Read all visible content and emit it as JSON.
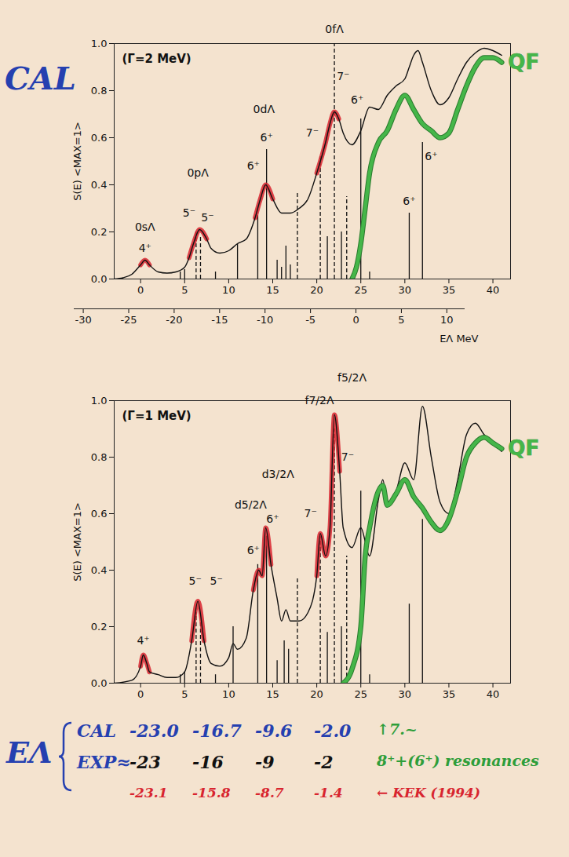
{
  "side_label": {
    "text": "CAL",
    "color": "#2540b0"
  },
  "chart_data": [
    {
      "type": "line",
      "title": "(Γ=2 MeV)",
      "y_label": "S(E) <MAX=1>",
      "xlim": [
        -3,
        42
      ],
      "xticks": [
        0,
        5,
        10,
        15,
        20,
        25,
        30,
        35,
        40
      ],
      "ylim": [
        0,
        1
      ],
      "yticks": [
        {
          "value": 0,
          "label": "0.0"
        },
        0.2,
        0.4,
        0.6,
        0.8,
        {
          "value": 1,
          "label": "1.0"
        }
      ],
      "secondary_x": {
        "label": "EΛ MeV",
        "xlim": [
          -31,
          12
        ],
        "xticks": [
          -30,
          -25,
          -20,
          -15,
          -10,
          -5,
          0,
          5,
          10
        ]
      },
      "series": [
        {
          "color": "#111111",
          "x": [
            -3,
            -2,
            -1,
            0,
            0.5,
            1,
            2,
            3,
            4,
            5,
            5.5,
            6,
            6.7,
            7.5,
            8,
            9,
            10,
            11,
            12,
            13,
            13.6,
            14.2,
            15,
            16,
            17,
            18,
            19,
            20,
            21,
            21.5,
            22,
            22.5,
            23,
            24,
            25,
            26,
            27,
            28,
            29,
            30,
            30.5,
            31,
            31.5,
            32,
            33,
            34,
            35,
            36,
            37,
            38,
            39,
            40,
            41
          ],
          "values": [
            0,
            0.005,
            0.02,
            0.06,
            0.08,
            0.06,
            0.03,
            0.025,
            0.03,
            0.05,
            0.09,
            0.15,
            0.21,
            0.17,
            0.13,
            0.11,
            0.12,
            0.15,
            0.17,
            0.26,
            0.34,
            0.4,
            0.34,
            0.28,
            0.28,
            0.3,
            0.34,
            0.45,
            0.58,
            0.66,
            0.71,
            0.68,
            0.62,
            0.57,
            0.63,
            0.73,
            0.72,
            0.78,
            0.82,
            0.85,
            0.9,
            0.95,
            0.97,
            0.92,
            0.8,
            0.74,
            0.77,
            0.85,
            0.92,
            0.96,
            0.98,
            0.97,
            0.95
          ],
          "highlight_ranges": [
            [
              -0.5,
              1.2
            ],
            [
              5.5,
              7.5
            ],
            [
              13,
              15
            ],
            [
              20,
              22.5
            ]
          ],
          "highlight_color": "#d8252f"
        },
        {
          "name": "QF",
          "color": "#45b649",
          "x": [
            24,
            24.5,
            25,
            25.5,
            26,
            27,
            28,
            29,
            30,
            31,
            32,
            33,
            34,
            35,
            36,
            37,
            38,
            39,
            40,
            41
          ],
          "values": [
            0,
            0.05,
            0.15,
            0.3,
            0.45,
            0.58,
            0.63,
            0.72,
            0.78,
            0.72,
            0.66,
            0.63,
            0.6,
            0.62,
            0.72,
            0.82,
            0.9,
            0.94,
            0.94,
            0.92
          ]
        }
      ],
      "sticks": {
        "x": [
          4.5,
          5,
          6.3,
          6.8,
          8.5,
          11,
          13.3,
          14.3,
          15.5,
          16,
          16.5,
          17,
          17.8,
          20.4,
          21.2,
          22,
          22.8,
          23.4,
          25,
          26,
          30.5,
          32
        ],
        "values": [
          0.03,
          0.04,
          0.2,
          0.18,
          0.03,
          0.15,
          0.27,
          0.55,
          0.08,
          0.05,
          0.14,
          0.06,
          0.37,
          0.52,
          0.18,
          1.0,
          0.2,
          0.35,
          0.68,
          0.03,
          0.28,
          0.58
        ],
        "line_style": [
          "solid",
          "solid",
          "dashed",
          "dashed",
          "solid",
          "solid",
          "solid",
          "solid",
          "solid",
          "solid",
          "solid",
          "solid",
          "dashed",
          "dashed",
          "solid",
          "dashed",
          "solid",
          "dashed",
          "solid",
          "solid",
          "solid",
          "solid"
        ]
      },
      "annotations": [
        {
          "text": "0sΛ",
          "x": 0.5,
          "y": 0.22
        },
        {
          "text": "4⁺",
          "x": 0.5,
          "y": 0.13
        },
        {
          "text": "0pΛ",
          "x": 6.5,
          "y": 0.45
        },
        {
          "text": "5⁻",
          "x": 5.5,
          "y": 0.28
        },
        {
          "text": "5⁻",
          "x": 7.6,
          "y": 0.26
        },
        {
          "text": "0dΛ",
          "x": 14,
          "y": 0.72
        },
        {
          "text": "6⁺",
          "x": 12.8,
          "y": 0.48
        },
        {
          "text": "6⁺",
          "x": 14.3,
          "y": 0.6
        },
        {
          "text": "0fΛ",
          "x": 22,
          "y": 1.06
        },
        {
          "text": "7⁻",
          "x": 19.5,
          "y": 0.62
        },
        {
          "text": "7⁻",
          "x": 23,
          "y": 0.86
        },
        {
          "text": "6⁺",
          "x": 24.6,
          "y": 0.76
        },
        {
          "text": "6⁺",
          "x": 30.5,
          "y": 0.33
        },
        {
          "text": "6⁺",
          "x": 33,
          "y": 0.52
        }
      ]
    },
    {
      "type": "line",
      "title": "(Γ=1 MeV)",
      "y_label": "S(E) <MAX=1>",
      "xlim": [
        -3,
        42
      ],
      "xticks": [
        0,
        5,
        10,
        15,
        20,
        25,
        30,
        35,
        40
      ],
      "ylim": [
        0,
        1
      ],
      "yticks": [
        {
          "value": 0,
          "label": "0.0"
        },
        0.2,
        0.4,
        0.6,
        0.8,
        {
          "value": 1,
          "label": "1.0"
        }
      ],
      "series": [
        {
          "color": "#111111",
          "x": [
            -3,
            -1,
            0,
            0.3,
            0.7,
            1,
            2,
            3,
            4,
            5,
            5.8,
            6.5,
            7.2,
            8,
            9,
            10,
            10.5,
            11,
            12,
            12.8,
            13.4,
            13.8,
            14.2,
            14.8,
            15.5,
            16,
            16.5,
            17,
            18,
            19,
            20,
            20.4,
            21,
            21.5,
            22,
            22.6,
            23,
            24,
            25,
            26,
            27,
            27.5,
            28,
            29,
            30,
            31,
            32,
            33,
            34,
            35,
            36,
            37,
            38,
            39,
            40,
            41
          ],
          "values": [
            0,
            0.01,
            0.06,
            0.1,
            0.07,
            0.04,
            0.03,
            0.02,
            0.02,
            0.04,
            0.15,
            0.29,
            0.15,
            0.07,
            0.06,
            0.09,
            0.14,
            0.12,
            0.16,
            0.33,
            0.4,
            0.38,
            0.55,
            0.42,
            0.3,
            0.22,
            0.26,
            0.22,
            0.22,
            0.25,
            0.38,
            0.53,
            0.45,
            0.55,
            0.95,
            0.75,
            0.55,
            0.48,
            0.55,
            0.45,
            0.65,
            0.72,
            0.64,
            0.68,
            0.78,
            0.72,
            0.98,
            0.8,
            0.64,
            0.6,
            0.72,
            0.88,
            0.92,
            0.88,
            0.85,
            0.82
          ],
          "highlight_ranges": [
            [
              -0.5,
              1
            ],
            [
              5.5,
              7.5
            ],
            [
              12.5,
              15
            ],
            [
              19.8,
              22.8
            ]
          ],
          "highlight_color": "#d8252f"
        },
        {
          "name": "QF",
          "color": "#45b649",
          "x": [
            23,
            24,
            25,
            25.5,
            26,
            27,
            27.5,
            28,
            29,
            30,
            31,
            32,
            33,
            34,
            35,
            36,
            37,
            38,
            39,
            40,
            41
          ],
          "values": [
            0,
            0.05,
            0.2,
            0.45,
            0.55,
            0.68,
            0.7,
            0.63,
            0.67,
            0.72,
            0.66,
            0.62,
            0.57,
            0.54,
            0.58,
            0.68,
            0.8,
            0.85,
            0.87,
            0.85,
            0.83
          ]
        }
      ],
      "sticks": {
        "x": [
          4.5,
          5,
          6.3,
          6.8,
          8.5,
          10.5,
          13.3,
          14.3,
          15.5,
          16.3,
          16.8,
          17.8,
          20.4,
          21.2,
          22,
          22.8,
          23.4,
          25,
          26,
          30.5,
          32
        ],
        "values": [
          0.03,
          0.04,
          0.25,
          0.22,
          0.03,
          0.2,
          0.42,
          0.52,
          0.08,
          0.15,
          0.12,
          0.37,
          0.52,
          0.18,
          0.9,
          0.2,
          0.45,
          0.68,
          0.03,
          0.28,
          0.58
        ],
        "line_style": [
          "solid",
          "solid",
          "dashed",
          "dashed",
          "solid",
          "solid",
          "solid",
          "solid",
          "solid",
          "solid",
          "solid",
          "dashed",
          "dashed",
          "solid",
          "dashed",
          "solid",
          "dashed",
          "solid",
          "solid",
          "solid",
          "solid"
        ]
      },
      "annotations": [
        {
          "text": "4⁺",
          "x": 0.3,
          "y": 0.15
        },
        {
          "text": "5⁻",
          "x": 6.2,
          "y": 0.36
        },
        {
          "text": "5⁻",
          "x": 8.6,
          "y": 0.36
        },
        {
          "text": "6⁺",
          "x": 12.8,
          "y": 0.47
        },
        {
          "text": "6⁺",
          "x": 15,
          "y": 0.58
        },
        {
          "text": "d5/2Λ",
          "x": 12.5,
          "y": 0.63
        },
        {
          "text": "d3/2Λ",
          "x": 15.6,
          "y": 0.74
        },
        {
          "text": "7⁻",
          "x": 19.3,
          "y": 0.6
        },
        {
          "text": "7⁻",
          "x": 23.5,
          "y": 0.8
        },
        {
          "text": "f7/2Λ",
          "x": 20.3,
          "y": 1.0
        },
        {
          "text": "f5/2Λ",
          "x": 24,
          "y": 1.08
        }
      ]
    }
  ],
  "footer": {
    "symbol": "EΛ",
    "color": "#2540b0",
    "rows": [
      {
        "label": "CAL",
        "values": [
          "-23.0",
          "-16.7",
          "-9.6",
          "-2.0"
        ],
        "color": "#2540b0",
        "note": "↑7.~",
        "note_color": "#2e9e3a"
      },
      {
        "label": "EXP≈",
        "values": [
          "-23",
          "-16",
          "-9",
          "-2"
        ],
        "color": "#111111",
        "note": "8⁺+(6⁺) resonances",
        "note_color": "#2e9e3a"
      },
      {
        "values": [
          "-23.1",
          "-15.8",
          "-8.7",
          "-1.4"
        ],
        "color": "#d8252f",
        "note": "← KEK (1994)",
        "note_color": "#d8252f"
      }
    ]
  }
}
